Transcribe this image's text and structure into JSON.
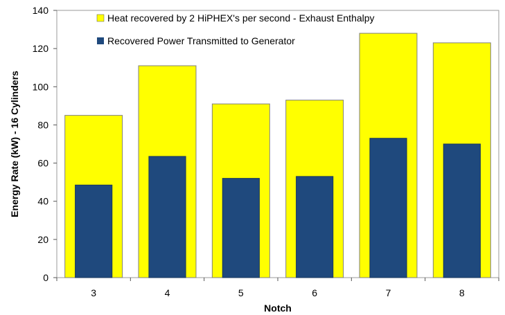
{
  "chart_data": {
    "type": "bar",
    "title": "",
    "xlabel": "Notch",
    "ylabel": "Energy Rate (kW) - 16 Cylinders",
    "categories": [
      "3",
      "4",
      "5",
      "6",
      "7",
      "8"
    ],
    "series": [
      {
        "name": "Heat recovered by 2 HiPHEX's per second - Exhaust Enthalpy",
        "color": "#ffff00",
        "values": [
          85,
          111,
          91,
          93,
          128,
          123
        ]
      },
      {
        "name": "Recovered Power Transmitted to Generator",
        "color": "#1f497d",
        "values": [
          48.5,
          63.5,
          52,
          53,
          73,
          70
        ]
      }
    ],
    "ylim": [
      0,
      140
    ],
    "yticks": [
      0,
      20,
      40,
      60,
      80,
      100,
      120,
      140
    ],
    "grid": false,
    "legend_position": "top-right",
    "bar_layout": "overlapping"
  }
}
